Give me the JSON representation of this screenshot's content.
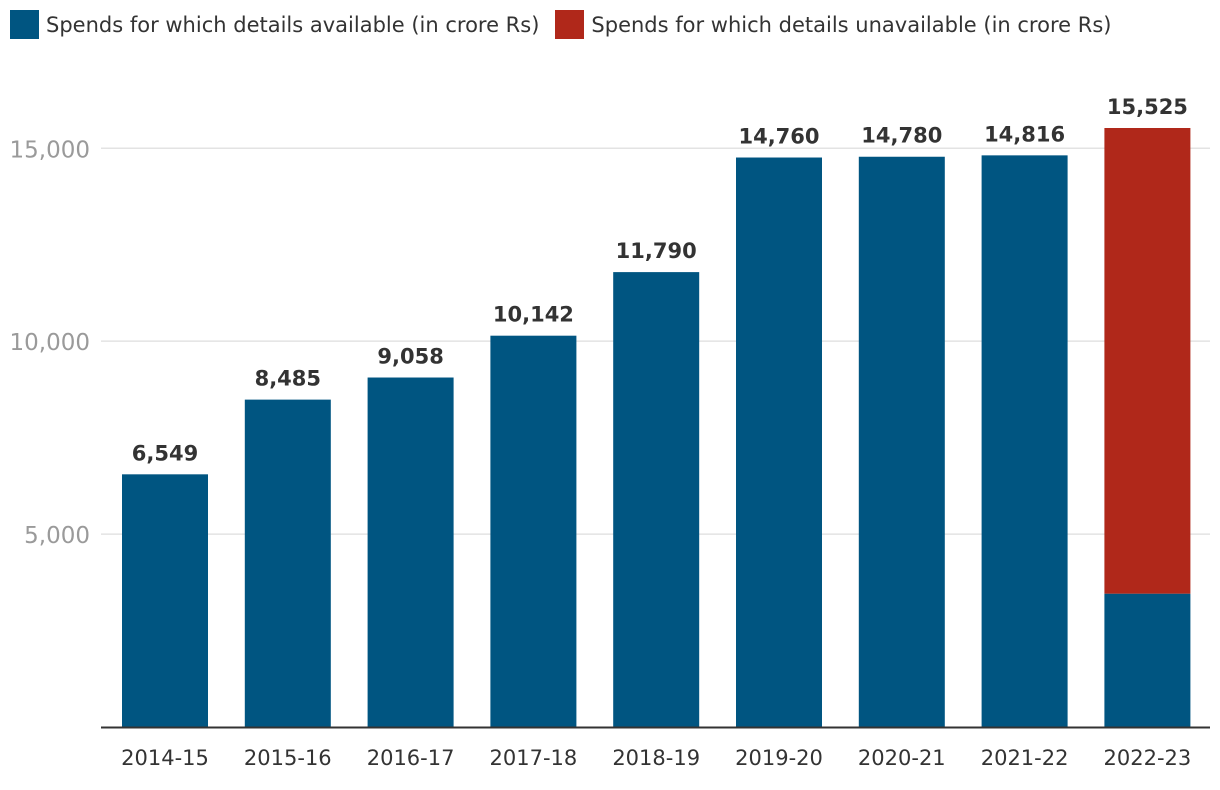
{
  "chart_data": {
    "type": "bar",
    "stacked": true,
    "categories": [
      "2014-15",
      "2015-16",
      "2016-17",
      "2017-18",
      "2018-19",
      "2019-20",
      "2020-21",
      "2021-22",
      "2022-23"
    ],
    "series": [
      {
        "name": "Spends for which details available (in crore Rs)",
        "color": "#005581",
        "values": [
          6549,
          8485,
          9058,
          10142,
          11790,
          14760,
          14780,
          14816,
          3456
        ]
      },
      {
        "name": "Spends for which details unavailable (in crore Rs)",
        "color": "#b0281a",
        "values": [
          0,
          0,
          0,
          0,
          0,
          0,
          0,
          0,
          12069
        ]
      }
    ],
    "totals": [
      "6,549",
      "8,485",
      "9,058",
      "10,142",
      "11,790",
      "14,760",
      "14,780",
      "14,816",
      "15,525"
    ],
    "ylim": [
      0,
      15525
    ],
    "yticks": [
      "5,000",
      "10,000",
      "15,000"
    ],
    "ytick_values": [
      5000,
      10000,
      15000
    ],
    "grid": true,
    "legend_position": "top-left"
  }
}
